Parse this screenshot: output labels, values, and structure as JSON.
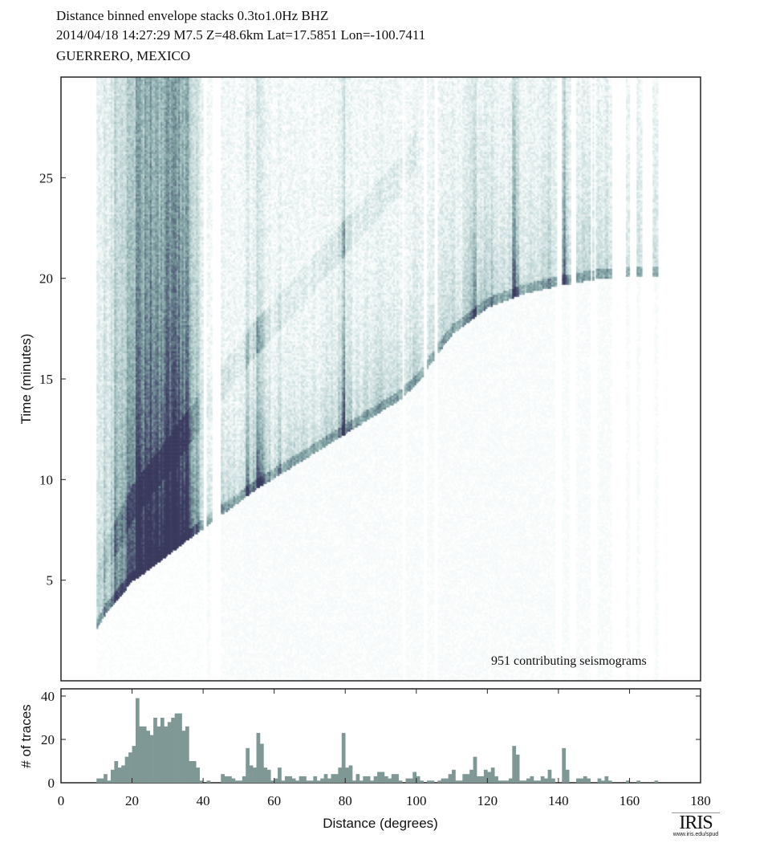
{
  "header": {
    "line1": "Distance binned envelope stacks  0.3to1.0Hz  BHZ",
    "line2": "2014/04/18  14:27:29  M7.5  Z=48.6km Lat=17.5851 Lon=-100.7411",
    "line3": "GUERRERO, MEXICO"
  },
  "annotation": "951 contributing seismograms",
  "logo": {
    "text": "IRIS",
    "url": "www.iris.edu/spud"
  },
  "colors": {
    "hist_bar": "#7f9896",
    "dark": "#3a3a5e",
    "mid": "#7a9c9e",
    "light": "#e6f0f0"
  },
  "chart_data": [
    {
      "type": "heatmap",
      "title": "Distance binned envelope stacks",
      "xlabel": "Distance (degrees)",
      "ylabel": "Time (minutes)",
      "xlim": [
        0,
        180
      ],
      "ylim": [
        0,
        30
      ],
      "yticks": [
        5,
        10,
        15,
        20,
        25
      ],
      "first_arrival_curve": [
        [
          10,
          2.6
        ],
        [
          13,
          3.5
        ],
        [
          20,
          4.9
        ],
        [
          30,
          6.2
        ],
        [
          35,
          6.9
        ],
        [
          45,
          8.2
        ],
        [
          55,
          9.5
        ],
        [
          65,
          10.6
        ],
        [
          75,
          11.7
        ],
        [
          85,
          12.8
        ],
        [
          95,
          13.9
        ],
        [
          100,
          14.7
        ],
        [
          105,
          16.0
        ],
        [
          110,
          17.2
        ],
        [
          120,
          18.5
        ],
        [
          130,
          19.2
        ],
        [
          140,
          19.6
        ],
        [
          150,
          19.9
        ],
        [
          156,
          20.0
        ],
        [
          168,
          20.1
        ]
      ]
    },
    {
      "type": "bar",
      "xlabel": "Distance (degrees)",
      "ylabel": "# of traces",
      "xlim": [
        0,
        180
      ],
      "ylim": [
        0,
        43
      ],
      "xticks": [
        0,
        20,
        40,
        60,
        80,
        100,
        120,
        140,
        160,
        180
      ],
      "yticks": [
        0,
        20,
        40
      ],
      "bin_start": 10,
      "bin_width": 1,
      "counts": [
        2,
        2,
        4,
        1,
        6,
        10,
        7,
        8,
        12,
        14,
        17,
        39,
        26,
        26,
        24,
        22,
        30,
        26,
        30,
        26,
        28,
        30,
        32,
        32,
        24,
        26,
        10,
        10,
        7,
        1,
        0,
        1,
        0,
        0,
        0,
        4,
        3,
        3,
        2,
        1,
        1,
        3,
        16,
        8,
        7,
        23,
        18,
        7,
        6,
        1,
        2,
        7,
        1,
        3,
        3,
        2,
        1,
        3,
        3,
        1,
        1,
        3,
        1,
        2,
        4,
        2,
        4,
        4,
        7,
        23,
        7,
        8,
        1,
        4,
        1,
        3,
        3,
        1,
        3,
        5,
        5,
        3,
        2,
        4,
        4,
        1,
        0,
        2,
        2,
        5,
        3,
        1,
        0,
        1,
        1,
        0,
        1,
        2,
        2,
        4,
        6,
        1,
        1,
        4,
        4,
        6,
        12,
        3,
        3,
        6,
        5,
        7,
        3,
        1,
        1,
        1,
        2,
        17,
        13,
        1,
        1,
        2,
        3,
        1,
        1,
        3,
        2,
        6,
        2,
        0,
        0,
        16,
        6,
        0,
        0,
        2,
        2,
        3,
        2,
        0,
        0,
        2,
        1,
        3,
        1,
        0,
        0,
        0,
        0,
        1,
        0,
        0,
        1,
        0,
        0,
        0,
        0,
        1,
        0
      ]
    }
  ]
}
